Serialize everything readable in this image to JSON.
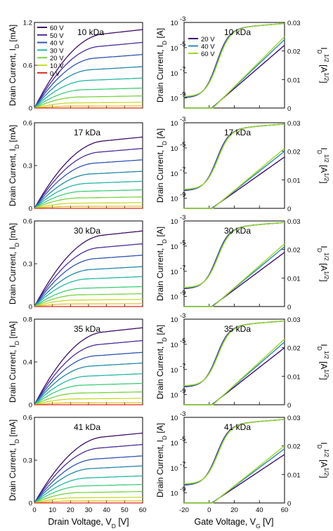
{
  "chart_data": {
    "type": "line",
    "output_voltages": [
      "60 V",
      "50 V",
      "40 V",
      "30 V",
      "20 V",
      "10 V",
      "0 V"
    ],
    "transfer_voltages": [
      "20 V",
      "40 V",
      "60 V"
    ],
    "output_xlabel": "Drain Voltage, V_D  [V]",
    "transfer_xlabel": "Gate Voltage, V_G  [V]",
    "output_ylabel": "Drain Current, I_D [mA]",
    "transfer_ylabel_left": "Drain Current, I_D [A]",
    "transfer_ylabel_right": "I_D^1/2 [A^1/2]",
    "output_xticks": [
      "0",
      "10",
      "20",
      "30",
      "40",
      "50",
      "60"
    ],
    "transfer_xticks": [
      "-20",
      "0",
      "20",
      "40",
      "60"
    ],
    "transfer_log_ticks": [
      "10",
      "10",
      "10",
      "10"
    ],
    "transfer_log_exps": [
      "-3",
      "-5",
      "-7",
      "-9"
    ],
    "transfer_right_ticks": [
      "0.03",
      "0.02",
      "0.01",
      "0"
    ],
    "colors": {
      "gate_steps": [
        "#3d0c68",
        "#4b2a9a",
        "#2f55b0",
        "#1f87a8",
        "#24b7a3",
        "#3fcc7a",
        "#79d33f",
        "#c6d92e",
        "#e8c021",
        "#d9261e"
      ],
      "transfer": [
        "#3b0f70",
        "#2e86c1",
        "#9bd82a"
      ]
    },
    "panels": [
      {
        "molecular_weight": "10 kDa",
        "output": {
          "ylim": [
            0,
            1.2
          ],
          "yticks": [
            "1.2",
            "0.6",
            "0"
          ],
          "ytick_values": [
            1.2,
            0.6,
            0
          ],
          "x": [
            0,
            60
          ],
          "sat_currents_mA": [
            1.1,
            0.92,
            0.75,
            0.58,
            0.42,
            0.28,
            0.17,
            0.08,
            0.03,
            0.0
          ]
        },
        "transfer": {
          "vg": [
            -20,
            60
          ],
          "log_offsets": [
            0,
            0,
            0
          ],
          "sqrt_max": [
            0.022,
            0.024,
            0.025
          ]
        }
      },
      {
        "molecular_weight": "17 kDa",
        "output": {
          "ylim": [
            0,
            0.6
          ],
          "yticks": [
            "0.6",
            "0.3",
            "0"
          ],
          "ytick_values": [
            0.6,
            0.3,
            0
          ],
          "x": [
            0,
            60
          ],
          "sat_currents_mA": [
            0.5,
            0.42,
            0.34,
            0.26,
            0.19,
            0.13,
            0.08,
            0.04,
            0.015,
            0.0
          ]
        },
        "transfer": {
          "vg": [
            -20,
            60
          ],
          "log_offsets": [
            0,
            0,
            0
          ],
          "sqrt_max": [
            0.018,
            0.02,
            0.021
          ]
        }
      },
      {
        "molecular_weight": "30 kDa",
        "output": {
          "ylim": [
            0,
            0.6
          ],
          "yticks": [
            "0.6",
            "0.3",
            "0"
          ],
          "ytick_values": [
            0.6,
            0.3,
            0
          ],
          "x": [
            0,
            60
          ],
          "sat_currents_mA": [
            0.53,
            0.44,
            0.36,
            0.28,
            0.21,
            0.14,
            0.09,
            0.05,
            0.02,
            0.0
          ]
        },
        "transfer": {
          "vg": [
            -20,
            60
          ],
          "log_offsets": [
            0,
            0,
            0
          ],
          "sqrt_max": [
            0.019,
            0.021,
            0.022
          ]
        }
      },
      {
        "molecular_weight": "35 kDa",
        "output": {
          "ylim": [
            0,
            0.8
          ],
          "yticks": [
            "0.8",
            "0.4",
            "0"
          ],
          "ytick_values": [
            0.8,
            0.4,
            0
          ],
          "x": [
            0,
            60
          ],
          "sat_currents_mA": [
            0.72,
            0.6,
            0.49,
            0.39,
            0.29,
            0.2,
            0.12,
            0.06,
            0.02,
            0.0
          ]
        },
        "transfer": {
          "vg": [
            -20,
            60
          ],
          "log_offsets": [
            0,
            0,
            0
          ],
          "sqrt_max": [
            0.02,
            0.022,
            0.023
          ]
        }
      },
      {
        "molecular_weight": "41 kDa",
        "output": {
          "ylim": [
            0,
            0.6
          ],
          "yticks": [
            "0.6",
            "0.3",
            "0"
          ],
          "ytick_values": [
            0.6,
            0.3,
            0
          ],
          "x": [
            0,
            60
          ],
          "sat_currents_mA": [
            0.49,
            0.41,
            0.33,
            0.26,
            0.19,
            0.13,
            0.08,
            0.04,
            0.015,
            0.0
          ]
        },
        "transfer": {
          "vg": [
            -20,
            60
          ],
          "log_offsets": [
            0,
            0,
            0
          ],
          "sqrt_max": [
            0.017,
            0.019,
            0.02
          ]
        }
      }
    ]
  }
}
